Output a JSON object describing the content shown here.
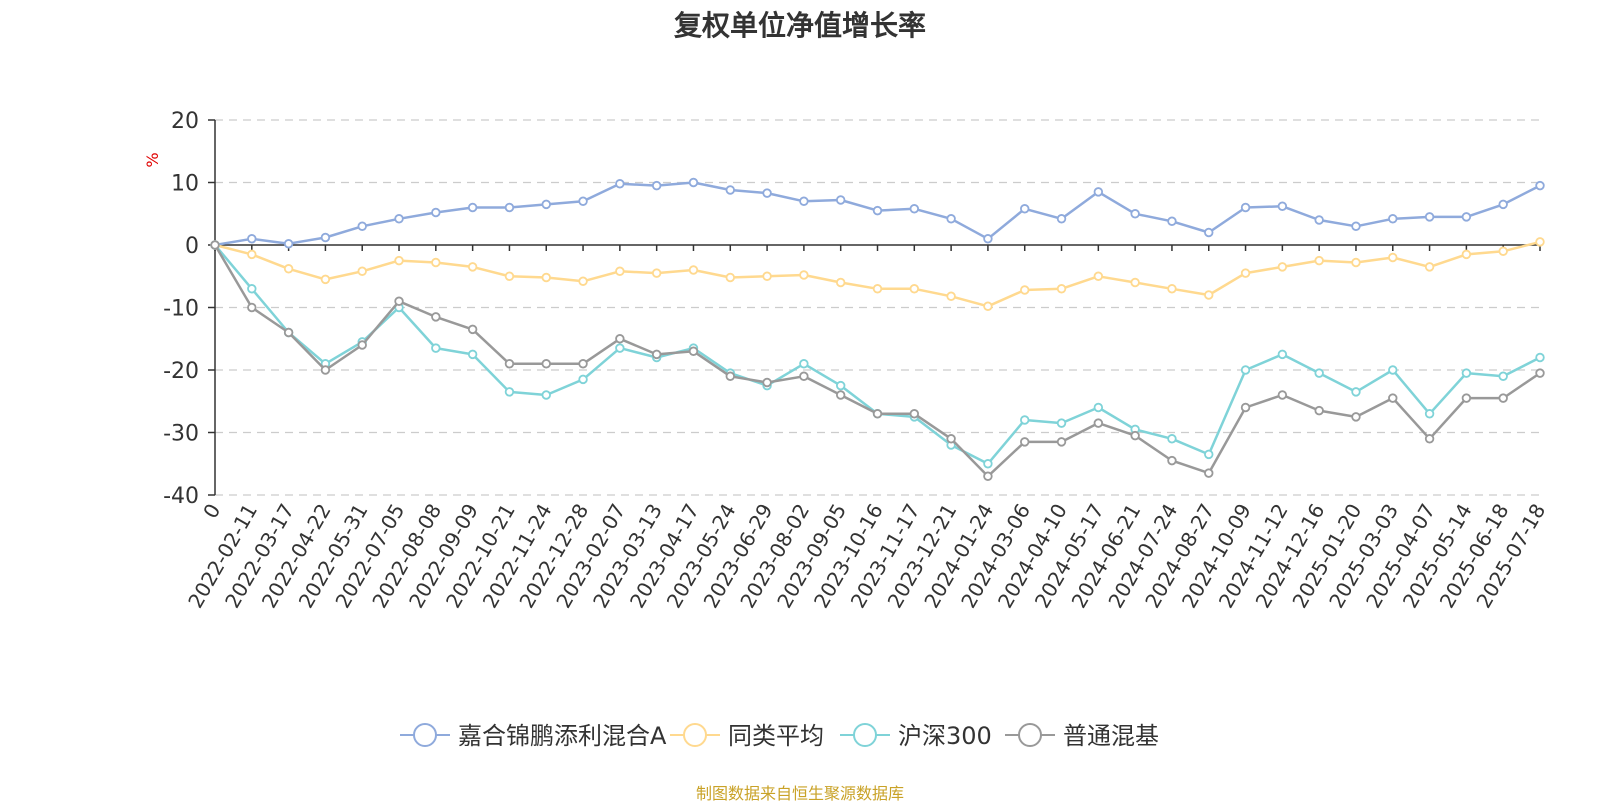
{
  "title": "复权单位净值增长率",
  "source_note": "制图数据来自恒生聚源数据库",
  "chart_data": {
    "type": "line",
    "ylabel": "%",
    "ylim": [
      -40,
      20
    ],
    "yticks": [
      20,
      10,
      0,
      -10,
      -20,
      -30,
      -40
    ],
    "grid": true,
    "legend_position": "bottom",
    "x_tick_labels": [
      "0",
      "2022-02-11",
      "2022-03-17",
      "2022-04-22",
      "2022-05-31",
      "2022-07-05",
      "2022-08-08",
      "2022-09-09",
      "2022-10-21",
      "2022-11-24",
      "2022-12-28",
      "2023-02-07",
      "2023-03-13",
      "2023-04-17",
      "2023-05-24",
      "2023-06-29",
      "2023-08-02",
      "2023-09-05",
      "2023-10-16",
      "2023-11-17",
      "2023-12-21",
      "2024-01-24",
      "2024-03-06",
      "2024-04-10",
      "2024-05-17",
      "2024-06-21",
      "2024-07-24",
      "2024-08-27",
      "2024-10-09",
      "2024-11-12",
      "2024-12-16",
      "2025-01-20",
      "2025-03-03",
      "2025-04-07",
      "2025-05-14",
      "2025-06-18",
      "2025-07-18"
    ],
    "series": [
      {
        "name": "嘉合锦鹏添利混合A",
        "color": "#8faadc",
        "values": [
          0,
          1.0,
          0.2,
          1.2,
          3.0,
          4.2,
          5.2,
          6.0,
          6.0,
          6.5,
          7.0,
          9.8,
          9.5,
          10.0,
          8.8,
          8.3,
          7.0,
          7.2,
          5.5,
          5.8,
          4.2,
          1.0,
          5.8,
          4.2,
          8.5,
          5.0,
          3.8,
          2.0,
          6.0,
          6.2,
          4.0,
          3.0,
          4.2,
          4.5,
          4.5,
          6.5,
          9.5
        ]
      },
      {
        "name": "同类平均",
        "color": "#ffd98f",
        "values": [
          0,
          -1.5,
          -3.8,
          -5.5,
          -4.2,
          -2.5,
          -2.8,
          -3.5,
          -5.0,
          -5.2,
          -5.8,
          -4.2,
          -4.5,
          -4.0,
          -5.2,
          -5.0,
          -4.8,
          -6.0,
          -7.0,
          -7.0,
          -8.2,
          -9.8,
          -7.2,
          -7.0,
          -5.0,
          -6.0,
          -7.0,
          -8.0,
          -4.5,
          -3.5,
          -2.5,
          -2.8,
          -2.0,
          -3.5,
          -1.5,
          -1.0,
          0.5
        ]
      },
      {
        "name": "沪深300",
        "color": "#7fd3d8",
        "values": [
          0,
          -7.0,
          -14.0,
          -19.0,
          -15.5,
          -10.0,
          -16.5,
          -17.5,
          -23.5,
          -24.0,
          -21.5,
          -16.5,
          -18.0,
          -16.5,
          -20.5,
          -22.5,
          -19.0,
          -22.5,
          -27.0,
          -27.5,
          -32.0,
          -35.0,
          -28.0,
          -28.5,
          -26.0,
          -29.5,
          -31.0,
          -33.5,
          -20.0,
          -17.5,
          -20.5,
          -23.5,
          -20.0,
          -27.0,
          -20.5,
          -21.0,
          -18.0
        ]
      },
      {
        "name": "普通混基",
        "color": "#999999",
        "values": [
          0,
          -10.0,
          -14.0,
          -20.0,
          -16.0,
          -9.0,
          -11.5,
          -13.5,
          -19.0,
          -19.0,
          -19.0,
          -15.0,
          -17.5,
          -17.0,
          -21.0,
          -22.0,
          -21.0,
          -24.0,
          -27.0,
          -27.0,
          -31.0,
          -37.0,
          -31.5,
          -31.5,
          -28.5,
          -30.5,
          -34.5,
          -36.5,
          -26.0,
          -24.0,
          -26.5,
          -27.5,
          -24.5,
          -31.0,
          -24.5,
          -24.5,
          -20.5
        ]
      }
    ]
  }
}
